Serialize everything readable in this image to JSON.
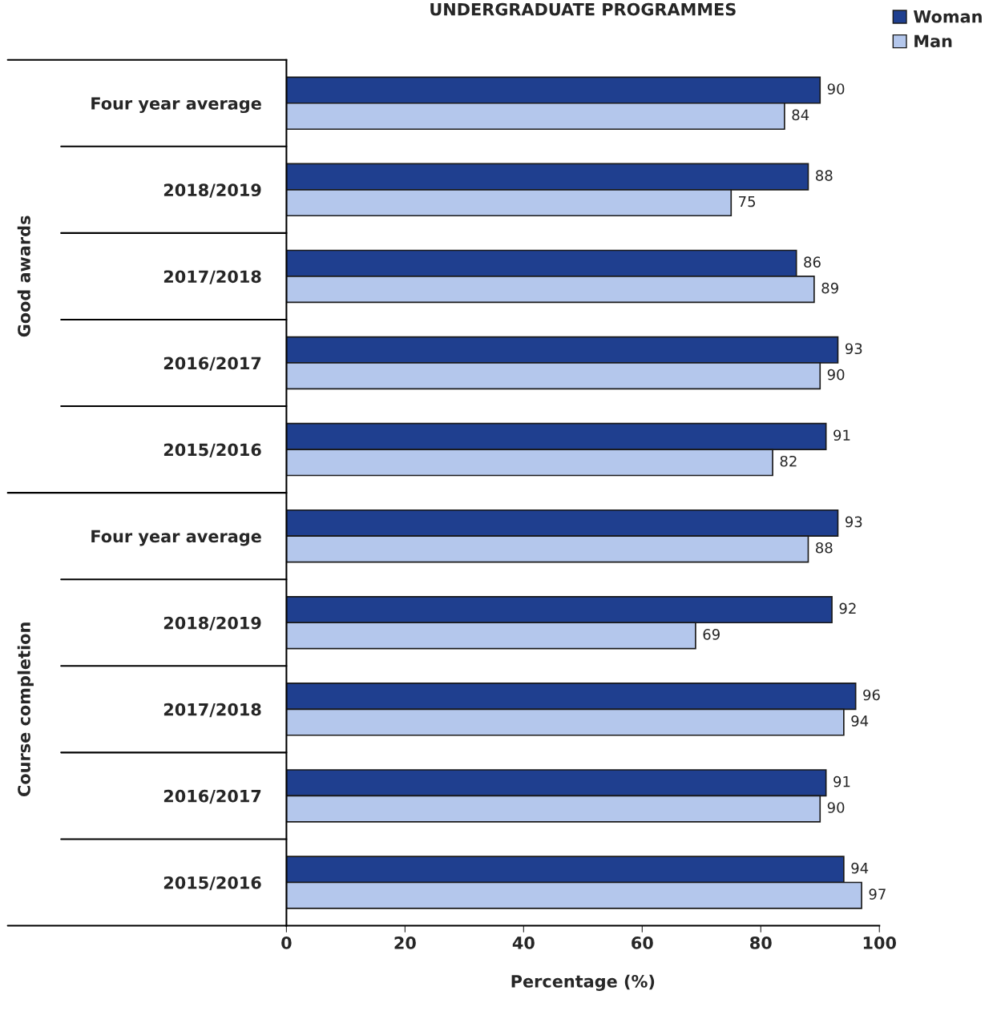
{
  "chart_data": {
    "type": "bar",
    "orientation": "horizontal",
    "title": "UNDERGRADUATE PROGRAMMES",
    "xlabel": "Percentage (%)",
    "categories": [
      "Four year average",
      "2018/2019",
      "2017/2018",
      "2016/2017",
      "2015/2016",
      "Four year average",
      "2018/2019",
      "2017/2018",
      "2016/2017",
      "2015/2016"
    ],
    "series": [
      {
        "name": "Woman",
        "color": "#1f3f8f",
        "values": [
          90,
          88,
          86,
          93,
          91,
          93,
          92,
          96,
          91,
          94
        ]
      },
      {
        "name": "Man",
        "color": "#b4c7ec",
        "values": [
          84,
          75,
          89,
          90,
          82,
          88,
          69,
          94,
          90,
          97
        ]
      }
    ],
    "annotations": [
      "Good awards",
      "Course completion"
    ],
    "xlim": [
      0,
      100
    ],
    "xticks": [
      0,
      20,
      40,
      60,
      80,
      100
    ],
    "data_labels": true,
    "legend": "top right",
    "grid": false
  }
}
